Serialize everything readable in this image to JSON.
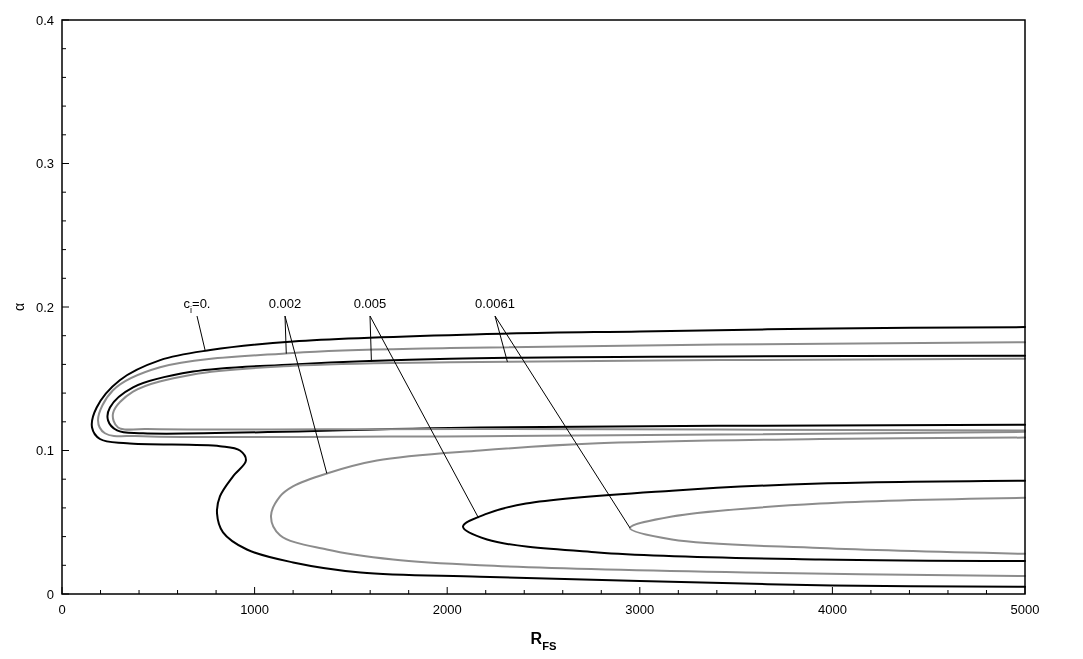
{
  "chart_data": {
    "type": "line",
    "xlabel": "R$_{FS}$",
    "ylabel": "α",
    "xlim": [
      0,
      5000
    ],
    "ylim": [
      0,
      0.4
    ],
    "xticks": [
      0,
      {
        "value": 200,
        "label": null
      },
      {
        "value": 400,
        "label": null
      },
      {
        "value": 600,
        "label": null
      },
      {
        "value": 800,
        "label": null
      },
      1000,
      {
        "value": 1200,
        "label": null
      },
      {
        "value": 1400,
        "label": null
      },
      {
        "value": 1600,
        "label": null
      },
      {
        "value": 1800,
        "label": null
      },
      2000,
      {
        "value": 2200,
        "label": null
      },
      {
        "value": 2400,
        "label": null
      },
      {
        "value": 2600,
        "label": null
      },
      {
        "value": 2800,
        "label": null
      },
      3000,
      {
        "value": 3200,
        "label": null
      },
      {
        "value": 3400,
        "label": null
      },
      {
        "value": 3600,
        "label": null
      },
      {
        "value": 3800,
        "label": null
      },
      4000,
      {
        "value": 4200,
        "label": null
      },
      {
        "value": 4400,
        "label": null
      },
      {
        "value": 4600,
        "label": null
      },
      {
        "value": 4800,
        "label": null
      },
      5000
    ],
    "yticks": [
      0,
      {
        "value": 0.02,
        "label": null
      },
      {
        "value": 0.04,
        "label": null
      },
      {
        "value": 0.06,
        "label": null
      },
      {
        "value": 0.08,
        "label": null
      },
      0.1,
      {
        "value": 0.12,
        "label": null
      },
      {
        "value": 0.14,
        "label": null
      },
      {
        "value": 0.16,
        "label": null
      },
      {
        "value": 0.18,
        "label": null
      },
      0.2,
      {
        "value": 0.22,
        "label": null
      },
      {
        "value": 0.24,
        "label": null
      },
      {
        "value": 0.26,
        "label": null
      },
      {
        "value": 0.28,
        "label": null
      },
      0.3,
      {
        "value": 0.32,
        "label": null
      },
      {
        "value": 0.34,
        "label": null
      },
      {
        "value": 0.36,
        "label": null
      },
      {
        "value": 0.38,
        "label": null
      },
      0.4
    ],
    "series": [
      {
        "name": "c$_{i}$=0.",
        "color": "#000000",
        "x": [
          5000,
          4000,
          3000,
          2170,
          1200,
          770,
          510,
          300,
          180,
          156,
          197,
          337,
          820,
          924,
          955,
          888,
          820,
          805,
          836,
          960,
          1200,
          1550,
          2170,
          3000,
          4000,
          5000
        ],
        "values": [
          0.186,
          0.185,
          0.183,
          0.181,
          0.176,
          0.17,
          0.163,
          0.149,
          0.13,
          0.116,
          0.108,
          0.105,
          0.103,
          0.1,
          0.093,
          0.082,
          0.068,
          0.056,
          0.043,
          0.031,
          0.022,
          0.015,
          0.012,
          0.009,
          0.006,
          0.005
        ]
      },
      {
        "name": "0.002",
        "color": "#8c8c8c",
        "x": [
          5000,
          2014,
          1199,
          509,
          265,
          187,
          223,
          421,
          2170,
          5000,
          null,
          5000,
          3936,
          2783,
          2170,
          1635,
          1375,
          1199,
          1132,
          1085,
          1132,
          1375,
          1719,
          2170,
          3551,
          5000
        ],
        "values": [
          0.1755,
          0.1715,
          0.168,
          0.158,
          0.142,
          0.121,
          0.112,
          0.11,
          0.11,
          0.113,
          null,
          0.109,
          0.108,
          0.105,
          0.1,
          0.093,
          0.084,
          0.075,
          0.068,
          0.054,
          0.041,
          0.031,
          0.024,
          0.02,
          0.015,
          0.0125
        ]
      },
      {
        "name": "0.005",
        "color": "#000000",
        "x": [
          5000,
          2014,
          1199,
          680,
          369,
          249,
          239,
          286,
          421,
          2170,
          5000,
          null,
          5000,
          3936,
          3167,
          2409,
          2207,
          2082,
          2207,
          2783,
          3936,
          5000
        ],
        "values": [
          0.166,
          0.164,
          0.16,
          0.155,
          0.144,
          0.13,
          0.121,
          0.114,
          0.112,
          0.116,
          0.118,
          null,
          0.079,
          0.077,
          0.072,
          0.063,
          0.056,
          0.047,
          0.038,
          0.029,
          0.024,
          0.023
        ]
      },
      {
        "name": "0.0061",
        "color": "#8c8c8c",
        "x": [
          5000,
          2014,
          1199,
          680,
          369,
          265,
          291,
          441,
          2170,
          5000,
          null,
          5000,
          3936,
          3167,
          2949,
          3167,
          3936,
          5000
        ],
        "values": [
          0.164,
          0.1615,
          0.159,
          0.153,
          0.141,
          0.126,
          0.116,
          0.115,
          0.115,
          0.114,
          null,
          0.067,
          0.063,
          0.054,
          0.046,
          0.038,
          0.032,
          0.028
        ]
      }
    ],
    "legend": false
  }
}
